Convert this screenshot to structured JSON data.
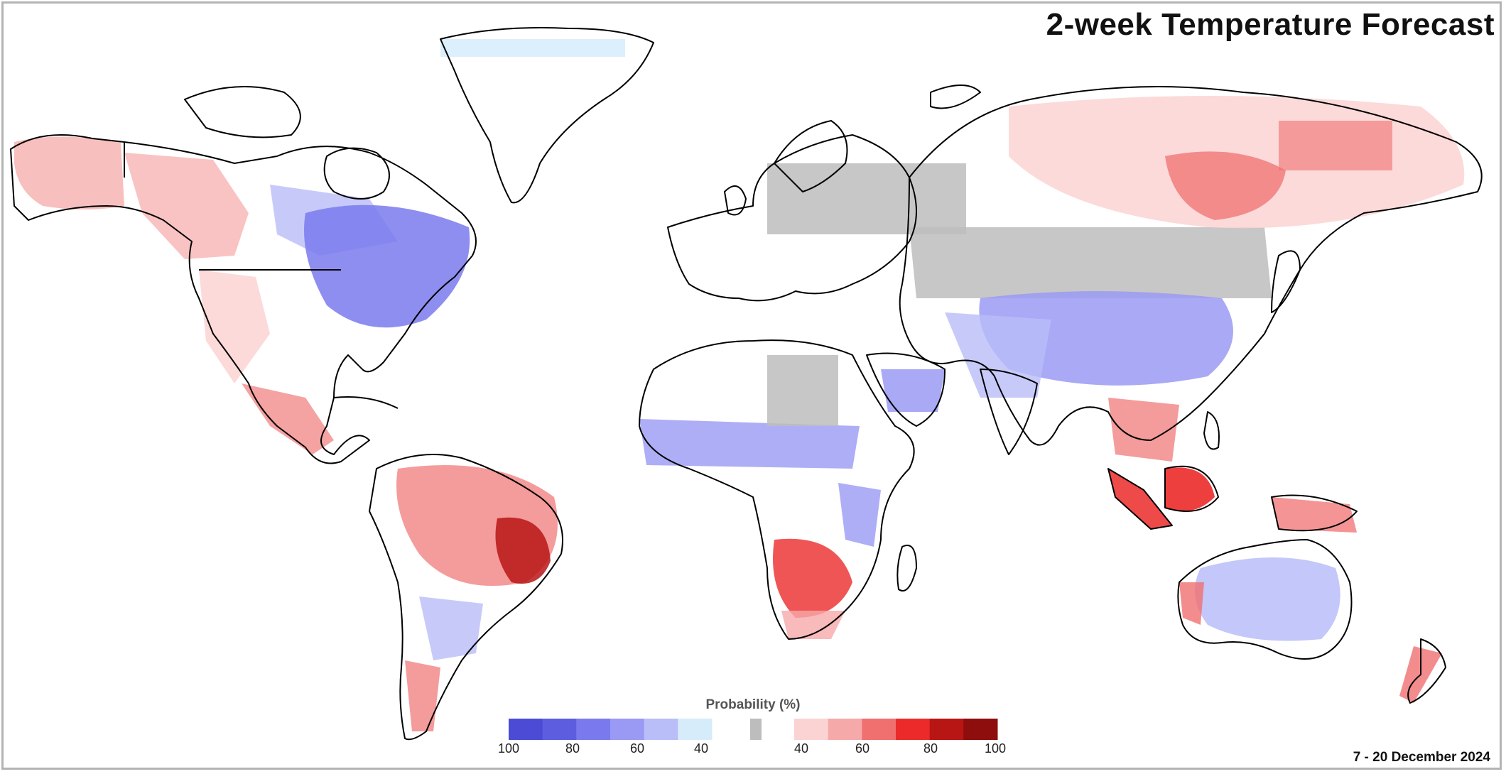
{
  "map": {
    "title": "2-week Temperature Forecast",
    "date_range": "7 - 20 December 2024",
    "legend": {
      "title": "Probability (%)",
      "below_ticks": [
        "100",
        "80",
        "60",
        "40"
      ],
      "above_ticks": [
        "40",
        "60",
        "80",
        "100"
      ],
      "below_colors": [
        "#4b4bd6",
        "#5d5de0",
        "#7a7aee",
        "#9a9af4",
        "#b9bdf8",
        "#d6ecfb"
      ],
      "neutral_color": "#bdbdbd",
      "above_colors": [
        "#fbd3d3",
        "#f6a9a9",
        "#f07070",
        "#ec2a2a",
        "#b81515",
        "#8e0d0d"
      ]
    },
    "colors": {
      "frame": "#b4b4b4",
      "coastline": "#000000",
      "land_background": "#ffffff"
    }
  }
}
